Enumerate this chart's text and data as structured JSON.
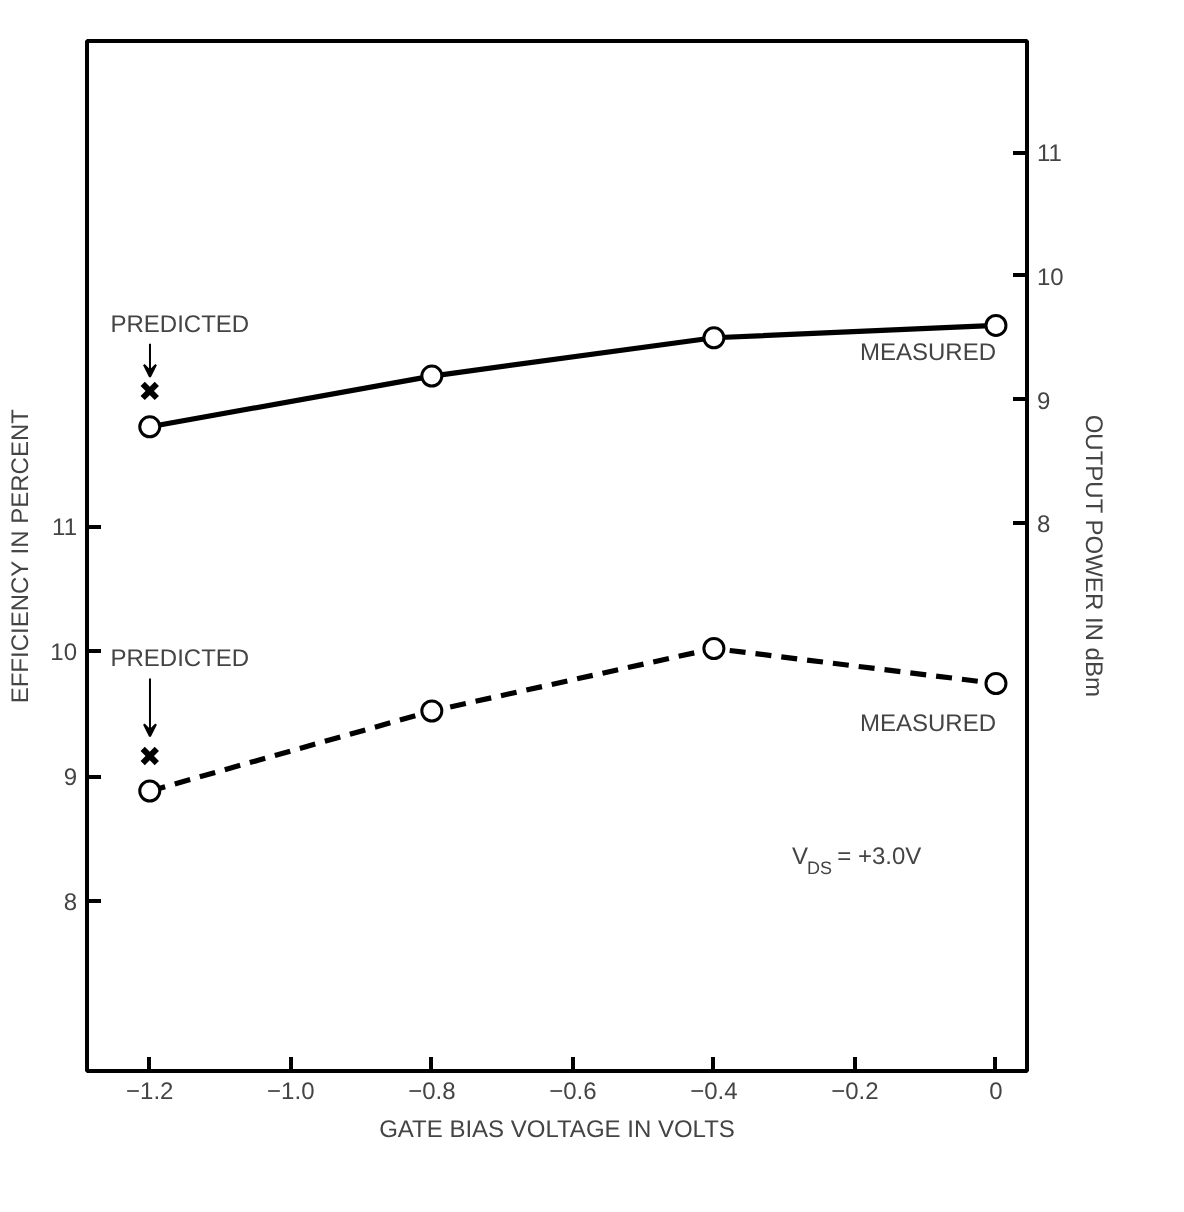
{
  "chart_data": {
    "type": "line",
    "xlabel": "GATE BIAS VOLTAGE IN VOLTS",
    "ylabel": "EFFICIENCY IN PERCENT",
    "y2label": "OUTPUT POWER IN dBm",
    "xlim": [
      -1.289,
      0.044
    ],
    "xticks": [
      {
        "value": -1.2,
        "label": "−1.2"
      },
      {
        "value": -1.0,
        "label": "−1.0"
      },
      {
        "value": -0.8,
        "label": "−0.8"
      },
      {
        "value": -0.6,
        "label": "−0.6"
      },
      {
        "value": -0.4,
        "label": "−0.4"
      },
      {
        "value": -0.2,
        "label": "−0.2"
      },
      0
    ],
    "ylim": [
      6.64,
      14.88
    ],
    "yticks": [
      8,
      9,
      10,
      11
    ],
    "y2lim": [
      3.57,
      11.9
    ],
    "y2ticks": [
      8,
      9,
      10,
      11
    ],
    "series": [
      {
        "axis": "y2",
        "color": "#000000",
        "line_style": "solid",
        "marker": "circle",
        "x": [
          -1.2,
          -0.8,
          -0.4,
          0
        ],
        "values": [
          8.78,
          9.19,
          9.5,
          9.6
        ]
      },
      {
        "axis": "y",
        "color": "#000000",
        "line_style": "dashed",
        "marker": "circle",
        "x": [
          -1.2,
          -0.8,
          -0.4,
          0
        ],
        "values": [
          8.88,
          9.52,
          10.02,
          9.74
        ]
      },
      {
        "type": "scatter",
        "axis": "y2",
        "color": "#000000",
        "marker": "cross",
        "x": [
          -1.2
        ],
        "values": [
          9.07
        ]
      },
      {
        "type": "scatter",
        "axis": "y",
        "color": "#000000",
        "marker": "cross",
        "x": [
          -1.2
        ],
        "values": [
          9.16
        ]
      }
    ],
    "annotations": [
      "PREDICTED",
      "MEASURED",
      "PREDICTED",
      "MEASURED",
      "V$_{DS}$ = +3.0V"
    ],
    "grid": false
  }
}
